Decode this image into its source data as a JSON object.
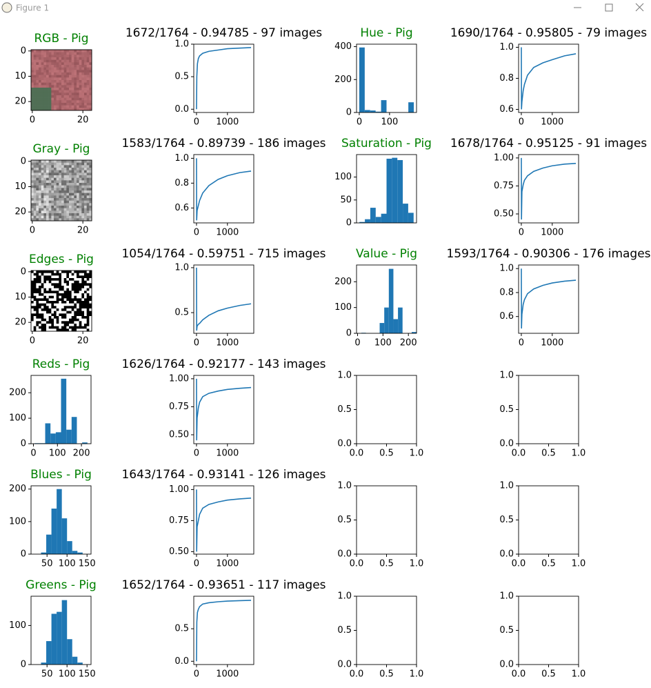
{
  "window": {
    "title": "Figure 1"
  },
  "chart_data": [
    {
      "type": "image",
      "title": "RGB - Pig",
      "title_color": "#008000",
      "colormap": "rgb",
      "xlim": [
        -0.5,
        23.5
      ],
      "ylim": [
        23.5,
        -0.5
      ],
      "xticks": [
        0,
        20
      ],
      "yticks": [
        0,
        10,
        20
      ]
    },
    {
      "type": "line",
      "title": "1672/1764 - 0.94785 - 97 images",
      "title_color": "#000000",
      "color": "#1f77b4",
      "x": [
        0,
        10,
        30,
        60,
        100,
        200,
        400,
        700,
        1000,
        1400,
        1764
      ],
      "values": [
        0,
        0.5,
        0.7,
        0.78,
        0.82,
        0.86,
        0.89,
        0.91,
        0.93,
        0.94,
        0.948
      ],
      "xlim": [
        -88,
        1852
      ],
      "ylim": [
        -0.05,
        1.0
      ],
      "xticks": [
        0,
        1000
      ],
      "yticks": [
        {
          "value": 0,
          "label": "0.0"
        },
        0.5,
        {
          "value": 1,
          "label": "1.0"
        }
      ]
    },
    {
      "type": "histogram",
      "title": "Hue - Pig",
      "title_color": "#008000",
      "color": "#1f77b4",
      "bins": [
        0,
        18,
        36,
        54,
        72,
        90,
        108,
        126,
        144,
        162,
        180
      ],
      "counts": [
        395,
        15,
        12,
        5,
        75,
        0,
        0,
        0,
        0,
        62
      ],
      "xlim": [
        -9,
        189
      ],
      "ylim": [
        0,
        415
      ],
      "xticks": [
        0,
        100
      ],
      "yticks": [
        0,
        200,
        400
      ]
    },
    {
      "type": "line",
      "title": "1690/1764 - 0.95805 - 79 images",
      "title_color": "#000000",
      "color": "#1f77b4",
      "x": [
        0,
        5,
        20,
        60,
        100,
        200,
        400,
        700,
        1000,
        1400,
        1764
      ],
      "values": [
        1.0,
        0.6,
        0.65,
        0.72,
        0.76,
        0.82,
        0.87,
        0.9,
        0.92,
        0.945,
        0.958
      ],
      "xlim": [
        -88,
        1852
      ],
      "ylim": [
        0.58,
        1.02
      ],
      "xticks": [
        0,
        1000
      ],
      "yticks": [
        0.6,
        0.8,
        {
          "value": 1,
          "label": "1.0"
        }
      ]
    },
    {
      "type": "image",
      "title": "Gray - Pig",
      "title_color": "#008000",
      "colormap": "gray",
      "xlim": [
        -0.5,
        23.5
      ],
      "ylim": [
        23.5,
        -0.5
      ],
      "xticks": [
        0,
        20
      ],
      "yticks": [
        0,
        10,
        20
      ]
    },
    {
      "type": "line",
      "title": "1583/1764 - 0.89739 - 186 images",
      "title_color": "#000000",
      "color": "#1f77b4",
      "x": [
        0,
        5,
        20,
        60,
        100,
        200,
        400,
        700,
        1000,
        1400,
        1764
      ],
      "values": [
        1.0,
        0.5,
        0.58,
        0.62,
        0.66,
        0.72,
        0.78,
        0.83,
        0.86,
        0.885,
        0.897
      ],
      "xlim": [
        -88,
        1852
      ],
      "ylim": [
        0.48,
        1.03
      ],
      "xticks": [
        0,
        1000
      ],
      "yticks": [
        0.6,
        0.8,
        {
          "value": 1,
          "label": "1.0"
        }
      ]
    },
    {
      "type": "histogram",
      "title": "Saturation - Pig",
      "title_color": "#008000",
      "color": "#1f77b4",
      "bins": [
        15,
        28,
        41,
        54,
        67,
        80,
        93,
        106,
        119,
        132,
        145
      ],
      "counts": [
        2,
        8,
        33,
        13,
        20,
        140,
        142,
        137,
        42,
        22
      ],
      "xlim": [
        8,
        152
      ],
      "ylim": [
        0,
        149
      ],
      "xticks": [],
      "yticks": [
        0,
        50,
        100
      ]
    },
    {
      "type": "line",
      "title": "1678/1764 - 0.95125 - 91 images",
      "title_color": "#000000",
      "color": "#1f77b4",
      "x": [
        0,
        5,
        20,
        60,
        100,
        200,
        400,
        700,
        1000,
        1400,
        1764
      ],
      "values": [
        1.0,
        0.45,
        0.7,
        0.76,
        0.8,
        0.84,
        0.88,
        0.91,
        0.93,
        0.945,
        0.951
      ],
      "xlim": [
        -88,
        1852
      ],
      "ylim": [
        0.42,
        1.03
      ],
      "xticks": [
        0,
        1000
      ],
      "yticks": [
        {
          "value": 0.5,
          "label": "0.50"
        },
        0.75,
        {
          "value": 1,
          "label": "1.00"
        }
      ]
    },
    {
      "type": "image",
      "title": "Edges - Pig",
      "title_color": "#008000",
      "colormap": "binary",
      "xlim": [
        -0.5,
        23.5
      ],
      "ylim": [
        23.5,
        -0.5
      ],
      "xticks": [
        0,
        20
      ],
      "yticks": [
        0,
        10,
        20
      ]
    },
    {
      "type": "line",
      "title": "1054/1764 - 0.59751 - 715 images",
      "title_color": "#000000",
      "color": "#1f77b4",
      "x": [
        0,
        5,
        20,
        60,
        100,
        200,
        400,
        700,
        1000,
        1400,
        1764
      ],
      "values": [
        1.0,
        0.3,
        0.35,
        0.37,
        0.38,
        0.42,
        0.47,
        0.52,
        0.55,
        0.58,
        0.598
      ],
      "xlim": [
        -88,
        1852
      ],
      "ylim": [
        0.27,
        1.03
      ],
      "xticks": [
        0,
        1000
      ],
      "yticks": [
        0.5,
        {
          "value": 1,
          "label": "1.0"
        }
      ]
    },
    {
      "type": "histogram",
      "title": "Value - Pig",
      "title_color": "#008000",
      "color": "#1f77b4",
      "bins": [
        15,
        33,
        51,
        69,
        87,
        105,
        123,
        141,
        159,
        177,
        195,
        213,
        231
      ],
      "counts": [
        2,
        0,
        0,
        0,
        40,
        100,
        250,
        55,
        100,
        0,
        0,
        5
      ],
      "xlim": [
        -4,
        232
      ],
      "ylim": [
        0,
        265
      ],
      "xticks": [
        0,
        100,
        200
      ],
      "yticks": [
        0,
        100,
        200
      ]
    },
    {
      "type": "line",
      "title": "1593/1764 - 0.90306 - 176 images",
      "title_color": "#000000",
      "color": "#1f77b4",
      "x": [
        0,
        5,
        20,
        60,
        100,
        200,
        400,
        700,
        1000,
        1400,
        1764
      ],
      "values": [
        1.0,
        0.5,
        0.62,
        0.7,
        0.74,
        0.79,
        0.83,
        0.86,
        0.88,
        0.895,
        0.903
      ],
      "xlim": [
        -88,
        1852
      ],
      "ylim": [
        0.46,
        1.03
      ],
      "xticks": [
        0,
        1000
      ],
      "yticks": [
        0.6,
        0.8,
        {
          "value": 1,
          "label": "1.0"
        }
      ]
    },
    {
      "type": "histogram",
      "title": "Reds - Pig",
      "title_color": "#008000",
      "color": "#1f77b4",
      "bins": [
        5,
        27,
        49,
        71,
        93,
        115,
        137,
        159,
        181,
        203,
        225
      ],
      "counts": [
        2,
        2,
        80,
        40,
        45,
        255,
        55,
        105,
        0,
        5
      ],
      "xlim": [
        -10,
        240
      ],
      "ylim": [
        0,
        268
      ],
      "xticks": [
        0,
        100,
        200
      ],
      "yticks": [
        0,
        100,
        200
      ]
    },
    {
      "type": "line",
      "title": "1626/1764 - 0.92177 - 143 images",
      "title_color": "#000000",
      "color": "#1f77b4",
      "x": [
        0,
        5,
        20,
        60,
        100,
        200,
        400,
        700,
        1000,
        1400,
        1764
      ],
      "values": [
        1.0,
        0.45,
        0.65,
        0.74,
        0.79,
        0.84,
        0.87,
        0.89,
        0.905,
        0.915,
        0.922
      ],
      "xlim": [
        -88,
        1852
      ],
      "ylim": [
        0.42,
        1.03
      ],
      "xticks": [
        0,
        1000
      ],
      "yticks": [
        {
          "value": 0.5,
          "label": "0.50"
        },
        0.75,
        {
          "value": 1,
          "label": "1.00"
        }
      ]
    },
    {
      "type": "empty",
      "xlim": [
        0,
        1
      ],
      "ylim": [
        0,
        1
      ],
      "xticks": [
        {
          "value": 0,
          "label": "0.0"
        },
        0.5,
        {
          "value": 1,
          "label": "1.0"
        }
      ],
      "yticks": [
        {
          "value": 0,
          "label": "0.0"
        },
        0.5,
        {
          "value": 1,
          "label": "1.0"
        }
      ]
    },
    {
      "type": "empty",
      "xlim": [
        0,
        1
      ],
      "ylim": [
        0,
        1
      ],
      "xticks": [
        {
          "value": 0,
          "label": "0.0"
        },
        0.5,
        {
          "value": 1,
          "label": "1.0"
        }
      ],
      "yticks": [
        {
          "value": 0,
          "label": "0.0"
        },
        0.5,
        {
          "value": 1,
          "label": "1.0"
        }
      ]
    },
    {
      "type": "histogram",
      "title": "Blues - Pig",
      "title_color": "#008000",
      "color": "#1f77b4",
      "bins": [
        35,
        48,
        61,
        74,
        87,
        100,
        113,
        126,
        139
      ],
      "counts": [
        5,
        60,
        140,
        200,
        110,
        40,
        10,
        5
      ],
      "xlim": [
        10,
        160
      ],
      "ylim": [
        0,
        210
      ],
      "xticks": [
        50,
        100,
        150
      ],
      "yticks": [
        0,
        100,
        200
      ]
    },
    {
      "type": "line",
      "title": "1643/1764 - 0.93141 - 126 images",
      "title_color": "#000000",
      "color": "#1f77b4",
      "x": [
        0,
        5,
        20,
        60,
        100,
        200,
        400,
        700,
        1000,
        1400,
        1764
      ],
      "values": [
        1.0,
        0.5,
        0.7,
        0.75,
        0.8,
        0.85,
        0.88,
        0.9,
        0.915,
        0.925,
        0.931
      ],
      "xlim": [
        -88,
        1852
      ],
      "ylim": [
        0.48,
        1.03
      ],
      "xticks": [
        0,
        1000
      ],
      "yticks": [
        {
          "value": 0.5,
          "label": "0.50"
        },
        0.75,
        {
          "value": 1,
          "label": "1.00"
        }
      ]
    },
    {
      "type": "empty",
      "xlim": [
        0,
        1
      ],
      "ylim": [
        0,
        1
      ],
      "xticks": [
        {
          "value": 0,
          "label": "0.0"
        },
        0.5,
        {
          "value": 1,
          "label": "1.0"
        }
      ],
      "yticks": [
        {
          "value": 0,
          "label": "0.0"
        },
        0.5,
        {
          "value": 1,
          "label": "1.0"
        }
      ]
    },
    {
      "type": "empty",
      "xlim": [
        0,
        1
      ],
      "ylim": [
        0,
        1
      ],
      "xticks": [
        {
          "value": 0,
          "label": "0.0"
        },
        0.5,
        {
          "value": 1,
          "label": "1.0"
        }
      ],
      "yticks": [
        {
          "value": 0,
          "label": "0.0"
        },
        0.5,
        {
          "value": 1,
          "label": "1.0"
        }
      ]
    },
    {
      "type": "histogram",
      "title": "Greens - Pig",
      "title_color": "#008000",
      "color": "#1f77b4",
      "bins": [
        35,
        48,
        61,
        74,
        87,
        100,
        113,
        126,
        139
      ],
      "counts": [
        5,
        60,
        130,
        135,
        165,
        65,
        20,
        5
      ],
      "xlim": [
        10,
        160
      ],
      "ylim": [
        0,
        175
      ],
      "xticks": [
        50,
        100,
        150
      ],
      "yticks": [
        0,
        100
      ]
    },
    {
      "type": "line",
      "title": "1652/1764 - 0.93651 - 117 images",
      "title_color": "#000000",
      "color": "#1f77b4",
      "x": [
        0,
        10,
        30,
        60,
        100,
        200,
        400,
        700,
        1000,
        1400,
        1764
      ],
      "values": [
        0,
        0.6,
        0.75,
        0.8,
        0.84,
        0.88,
        0.9,
        0.915,
        0.925,
        0.932,
        0.937
      ],
      "xlim": [
        -88,
        1852
      ],
      "ylim": [
        -0.05,
        1.0
      ],
      "xticks": [
        0,
        1000
      ],
      "yticks": [
        {
          "value": 0,
          "label": "0.0"
        },
        0.5
      ]
    },
    {
      "type": "empty",
      "xlim": [
        0,
        1
      ],
      "ylim": [
        0,
        1
      ],
      "xticks": [
        {
          "value": 0,
          "label": "0.0"
        },
        0.5,
        {
          "value": 1,
          "label": "1.0"
        }
      ],
      "yticks": [
        {
          "value": 0,
          "label": "0.0"
        },
        0.5,
        {
          "value": 1,
          "label": "1.0"
        }
      ]
    },
    {
      "type": "empty",
      "xlim": [
        0,
        1
      ],
      "ylim": [
        0,
        1
      ],
      "xticks": [
        {
          "value": 0,
          "label": "0.0"
        },
        0.5,
        {
          "value": 1,
          "label": "1.0"
        }
      ],
      "yticks": [
        {
          "value": 0,
          "label": "0.0"
        },
        0.5,
        {
          "value": 1,
          "label": "1.0"
        }
      ]
    }
  ]
}
